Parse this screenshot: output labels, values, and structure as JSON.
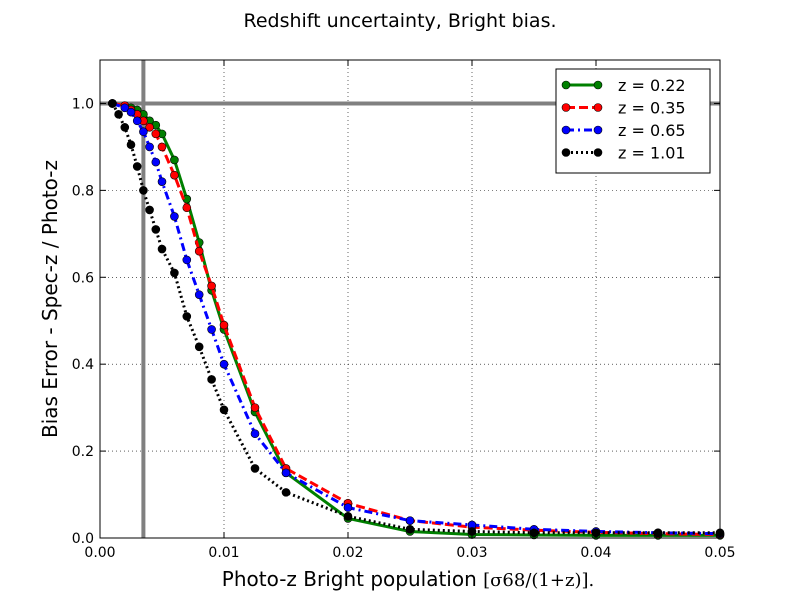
{
  "chart_data": {
    "type": "line",
    "title": "Redshift uncertainty, Bright bias.",
    "xlabel_prefix": "Photo-z Bright population ",
    "xlabel_math": "[σ68/(1+z)].",
    "ylabel": "Bias Error - Spec-z / Photo-z",
    "xlim": [
      0.0,
      0.05
    ],
    "ylim": [
      0.0,
      1.1
    ],
    "xticks": [
      0.0,
      0.01,
      0.02,
      0.03,
      0.04,
      0.05
    ],
    "xtick_labels": [
      "0.00",
      "0.01",
      "0.02",
      "0.03",
      "0.04",
      "0.05"
    ],
    "yticks": [
      0.0,
      0.2,
      0.4,
      0.6,
      0.8,
      1.0
    ],
    "ytick_labels": [
      "0.0",
      "0.2",
      "0.4",
      "0.6",
      "0.8",
      "1.0"
    ],
    "grid": true,
    "legend_position": "top-right",
    "reference_lines": {
      "x": 0.0035,
      "y": 1.0,
      "color": "#808080"
    },
    "series": [
      {
        "name": "z = 0.22",
        "color": "#008000",
        "dash": "solid",
        "x": [
          0.001,
          0.002,
          0.0025,
          0.003,
          0.0035,
          0.004,
          0.0045,
          0.005,
          0.006,
          0.007,
          0.008,
          0.009,
          0.01,
          0.0125,
          0.015,
          0.02,
          0.025,
          0.03,
          0.035,
          0.04,
          0.045,
          0.05
        ],
        "y": [
          1.0,
          0.995,
          0.99,
          0.985,
          0.975,
          0.96,
          0.95,
          0.93,
          0.87,
          0.78,
          0.68,
          0.57,
          0.48,
          0.29,
          0.15,
          0.045,
          0.015,
          0.008,
          0.007,
          0.006,
          0.006,
          0.006
        ]
      },
      {
        "name": "z = 0.35",
        "color": "#ff0000",
        "dash": "dashed",
        "x": [
          0.001,
          0.002,
          0.0025,
          0.003,
          0.0035,
          0.004,
          0.0045,
          0.005,
          0.006,
          0.007,
          0.008,
          0.009,
          0.01,
          0.0125,
          0.015,
          0.02,
          0.025,
          0.03,
          0.035,
          0.04,
          0.045,
          0.05
        ],
        "y": [
          1.0,
          0.995,
          0.985,
          0.975,
          0.96,
          0.945,
          0.93,
          0.9,
          0.835,
          0.76,
          0.66,
          0.58,
          0.49,
          0.3,
          0.16,
          0.08,
          0.04,
          0.025,
          0.018,
          0.013,
          0.01,
          0.008
        ]
      },
      {
        "name": "z = 0.65",
        "color": "#0000ff",
        "dash": "dashdot",
        "x": [
          0.001,
          0.002,
          0.0025,
          0.003,
          0.0035,
          0.004,
          0.0045,
          0.005,
          0.006,
          0.007,
          0.008,
          0.009,
          0.01,
          0.0125,
          0.015,
          0.02,
          0.025,
          0.03,
          0.035,
          0.04,
          0.045,
          0.05
        ],
        "y": [
          1.0,
          0.99,
          0.98,
          0.96,
          0.935,
          0.9,
          0.865,
          0.82,
          0.74,
          0.64,
          0.56,
          0.48,
          0.4,
          0.24,
          0.15,
          0.07,
          0.04,
          0.03,
          0.02,
          0.015,
          0.012,
          0.01
        ]
      },
      {
        "name": "z = 1.01",
        "color": "#000000",
        "dash": "dotted",
        "x": [
          0.001,
          0.0015,
          0.002,
          0.0025,
          0.003,
          0.0035,
          0.004,
          0.0045,
          0.005,
          0.006,
          0.007,
          0.008,
          0.009,
          0.01,
          0.0125,
          0.015,
          0.02,
          0.025,
          0.03,
          0.035,
          0.04,
          0.045,
          0.05
        ],
        "y": [
          1.0,
          0.975,
          0.945,
          0.905,
          0.855,
          0.8,
          0.755,
          0.71,
          0.665,
          0.61,
          0.51,
          0.44,
          0.365,
          0.295,
          0.16,
          0.105,
          0.05,
          0.02,
          0.015,
          0.012,
          0.012,
          0.012,
          0.012
        ]
      }
    ]
  }
}
